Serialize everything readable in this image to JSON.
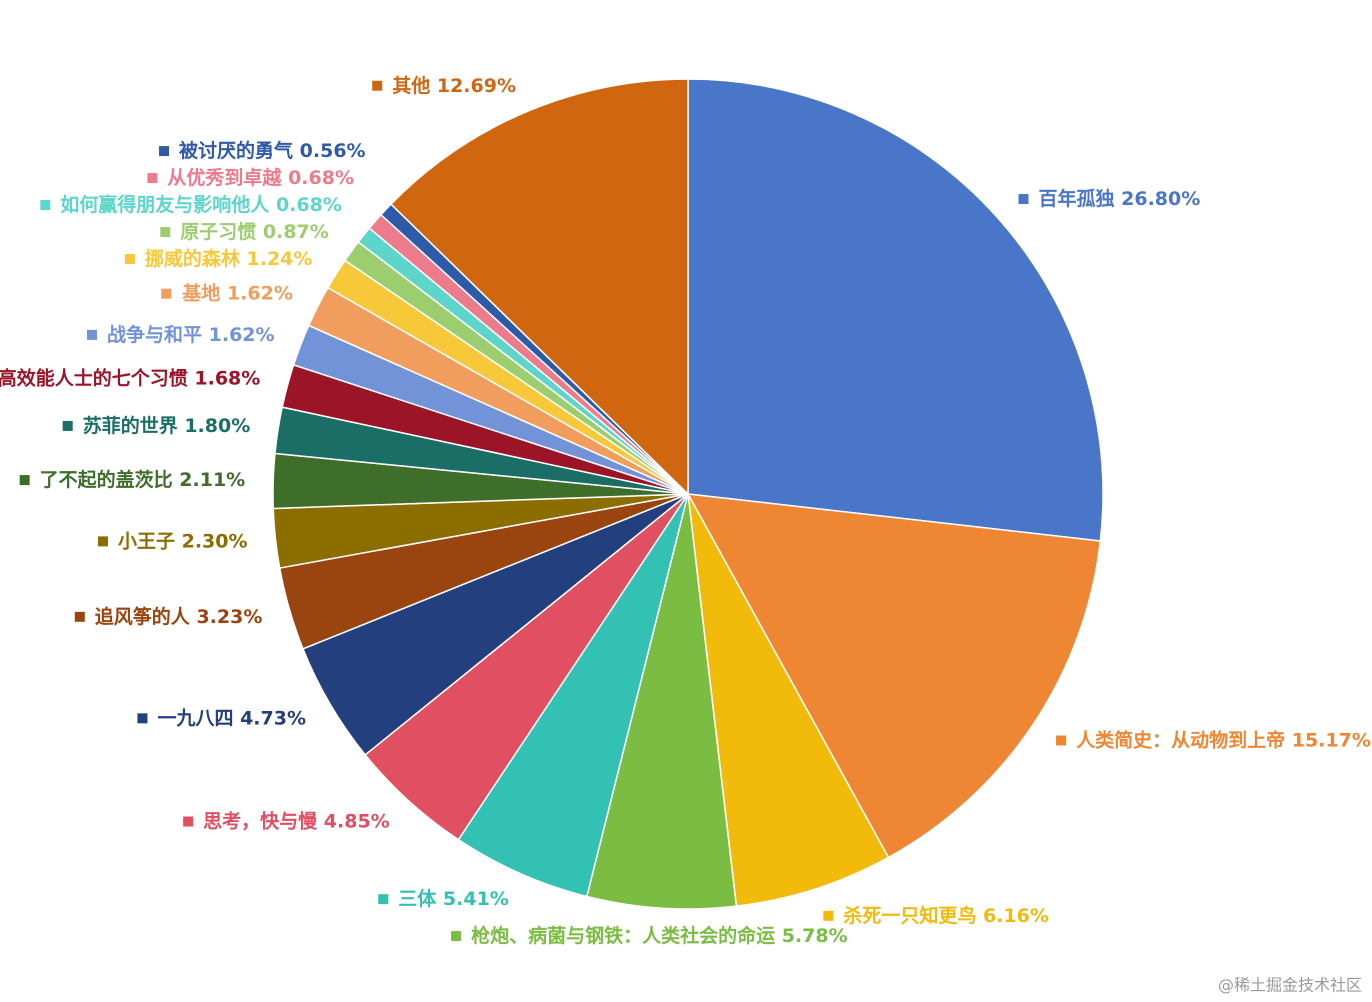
{
  "chart_data": {
    "type": "pie",
    "categories": [
      "百年孤独",
      "人类简史：从动物到上帝",
      "杀死一只知更鸟",
      "枪炮、病菌与钢铁：人类社会的命运",
      "三体",
      "思考，快与慢",
      "一九八四",
      "追风筝的人",
      "小王子",
      "了不起的盖茨比",
      "苏菲的世界",
      "高效能人士的七个习惯",
      "战争与和平",
      "基地",
      "挪威的森林",
      "原子习惯",
      "如何赢得朋友与影响他人",
      "从优秀到卓越",
      "被讨厌的勇气",
      "其他"
    ],
    "values": [
      26.8,
      15.17,
      6.16,
      5.78,
      5.41,
      4.85,
      4.73,
      3.23,
      2.3,
      2.11,
      1.8,
      1.68,
      1.62,
      1.62,
      1.24,
      0.87,
      0.68,
      0.68,
      0.56,
      12.69
    ],
    "value_labels": [
      "26.80%",
      "15.17%",
      "6.16%",
      "5.78%",
      "5.41%",
      "4.85%",
      "4.73%",
      "3.23%",
      "2.30%",
      "2.11%",
      "1.80%",
      "1.68%",
      "1.62%",
      "1.62%",
      "1.24%",
      "0.87%",
      "0.68%",
      "0.68%",
      "0.56%",
      "12.69%"
    ],
    "colors": [
      "#4a76c9",
      "#ef8633",
      "#f2bb0c",
      "#7bbd42",
      "#33c1b4",
      "#e14f62",
      "#233f7e",
      "#9a4510",
      "#8c6d00",
      "#3f6d2a",
      "#1b6e66",
      "#9b1428",
      "#7393d9",
      "#f09d5e",
      "#f7c83a",
      "#9ccd6e",
      "#5dd5cb",
      "#ec7b8c",
      "#2f5aa8",
      "#d06710"
    ]
  },
  "watermark": "@稀土掘金技术社区"
}
